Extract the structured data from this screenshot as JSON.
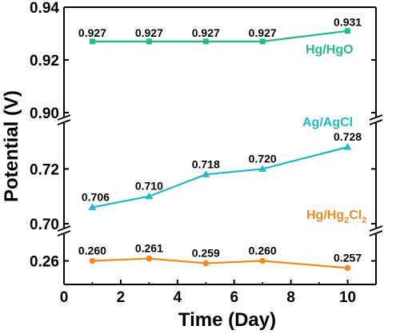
{
  "chart_data": {
    "type": "line",
    "title": "",
    "xlabel": "Time (Day)",
    "ylabel": "Potential (V)",
    "x": [
      1,
      3,
      5,
      7,
      10
    ],
    "xlim": [
      0,
      11
    ],
    "xticks": [
      "0",
      "2",
      "4",
      "6",
      "8",
      "10"
    ],
    "axis_breaks": true,
    "grid": false,
    "legend": "none; series names printed beside each line",
    "panels": [
      {
        "ylim": [
          0.9,
          0.94
        ],
        "yticks": [
          "0.90",
          "0.92",
          "0.94"
        ]
      },
      {
        "ylim": [
          0.7,
          0.735
        ],
        "yticks": [
          "0.70",
          "0.72"
        ]
      },
      {
        "ylim": [
          0.25,
          0.27
        ],
        "yticks": [
          "0.26"
        ]
      }
    ],
    "series": [
      {
        "name": "Hg/HgO",
        "color": "#1fbd84",
        "panel": 0,
        "values": [
          0.927,
          0.927,
          0.927,
          0.927,
          0.931
        ],
        "labels": [
          "0.927",
          "0.927",
          "0.927",
          "0.927",
          "0.931"
        ]
      },
      {
        "name": "Ag/AgCl",
        "color": "#20b8c8",
        "panel": 1,
        "values": [
          0.706,
          0.71,
          0.718,
          0.72,
          0.728
        ],
        "labels": [
          "0.706",
          "0.710",
          "0.718",
          "0.720",
          "0.728"
        ]
      },
      {
        "name_main": "Hg/Hg",
        "name_sub1": "2",
        "name_mid": "Cl",
        "name_sub2": "2",
        "color": "#f5871f",
        "panel": 2,
        "values": [
          0.26,
          0.261,
          0.259,
          0.26,
          0.257
        ],
        "labels": [
          "0.260",
          "0.261",
          "0.259",
          "0.260",
          "0.257"
        ]
      }
    ]
  }
}
